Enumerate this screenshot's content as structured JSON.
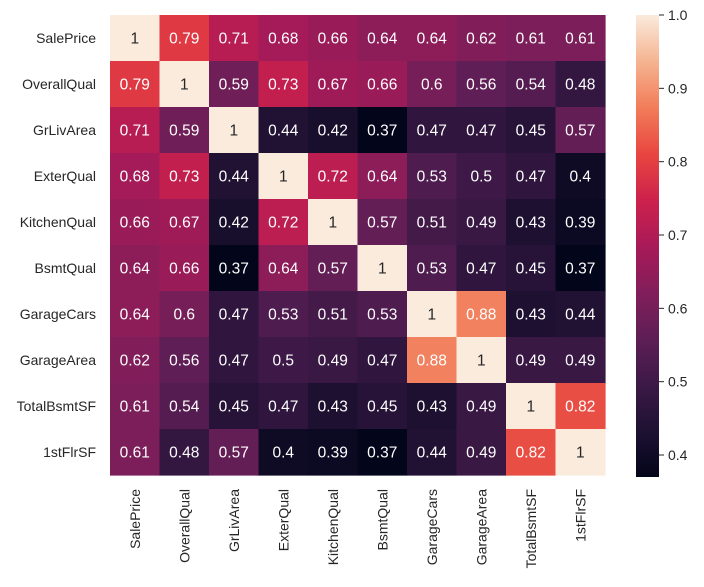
{
  "chart_data": {
    "type": "heatmap",
    "title": "",
    "xlabel": "",
    "ylabel": "",
    "row_labels": [
      "SalePrice",
      "OverallQual",
      "GrLivArea",
      "ExterQual",
      "KitchenQual",
      "BsmtQual",
      "GarageCars",
      "GarageArea",
      "TotalBsmtSF",
      "1stFlrSF"
    ],
    "col_labels": [
      "SalePrice",
      "OverallQual",
      "GrLivArea",
      "ExterQual",
      "KitchenQual",
      "BsmtQual",
      "GarageCars",
      "GarageArea",
      "TotalBsmtSF",
      "1stFlrSF"
    ],
    "values": [
      [
        1,
        0.79,
        0.71,
        0.68,
        0.66,
        0.64,
        0.64,
        0.62,
        0.61,
        0.61
      ],
      [
        0.79,
        1,
        0.59,
        0.73,
        0.67,
        0.66,
        0.6,
        0.56,
        0.54,
        0.48
      ],
      [
        0.71,
        0.59,
        1,
        0.44,
        0.42,
        0.37,
        0.47,
        0.47,
        0.45,
        0.57
      ],
      [
        0.68,
        0.73,
        0.44,
        1,
        0.72,
        0.64,
        0.53,
        0.5,
        0.47,
        0.4
      ],
      [
        0.66,
        0.67,
        0.42,
        0.72,
        1,
        0.57,
        0.51,
        0.49,
        0.43,
        0.39
      ],
      [
        0.64,
        0.66,
        0.37,
        0.64,
        0.57,
        1,
        0.53,
        0.47,
        0.45,
        0.37
      ],
      [
        0.64,
        0.6,
        0.47,
        0.53,
        0.51,
        0.53,
        1,
        0.88,
        0.43,
        0.44
      ],
      [
        0.62,
        0.56,
        0.47,
        0.5,
        0.49,
        0.47,
        0.88,
        1,
        0.49,
        0.49
      ],
      [
        0.61,
        0.54,
        0.45,
        0.47,
        0.43,
        0.45,
        0.43,
        0.49,
        1,
        0.82
      ],
      [
        0.61,
        0.48,
        0.57,
        0.4,
        0.39,
        0.37,
        0.44,
        0.49,
        0.82,
        1
      ]
    ],
    "colorbar": {
      "range": [
        0.37,
        1.0
      ],
      "ticks": [
        0.4,
        0.5,
        0.6,
        0.7,
        0.8,
        0.9,
        1.0
      ],
      "tick_labels": [
        "0.4",
        "0.5",
        "0.6",
        "0.7",
        "0.8",
        "0.9",
        "1.0"
      ],
      "colormap": "rocket"
    },
    "annotations": true
  }
}
